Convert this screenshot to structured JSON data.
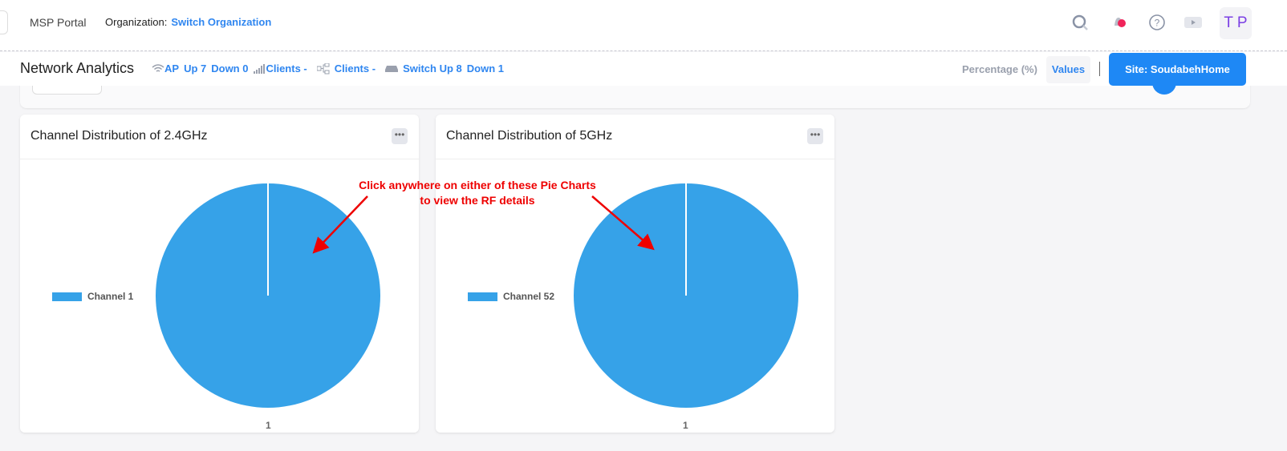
{
  "header": {
    "portal": "MSP Portal",
    "org_label": "Organization:",
    "org_link": "Switch Organization",
    "avatar": "T P",
    "icons": [
      "search-icon",
      "bell-icon",
      "help-icon",
      "video-icon"
    ],
    "notification_color": "#f0245a"
  },
  "subbar": {
    "title": "Network Analytics",
    "stats": {
      "ap": "AP",
      "ap_up": "Up 7",
      "ap_down": "Down 0",
      "clients1": "Clients -",
      "clients2": "Clients -",
      "switch": "Switch Up 8",
      "switch_down": "Down 1"
    },
    "percentage": "Percentage (%)",
    "values": "Values",
    "site": "Site: SoudabehHome"
  },
  "annotation": "Click anywhere on either of these Pie Charts to view the RF details",
  "chart_data": [
    {
      "type": "pie",
      "title": "Channel Distribution of 2.4GHz",
      "categories": [
        "Channel 1"
      ],
      "values": [
        1
      ],
      "colors": [
        "#36a2e8"
      ],
      "legend": "left"
    },
    {
      "type": "pie",
      "title": "Channel Distribution of 5GHz",
      "categories": [
        "Channel 52"
      ],
      "values": [
        1
      ],
      "colors": [
        "#36a2e8"
      ],
      "legend": "left"
    }
  ]
}
